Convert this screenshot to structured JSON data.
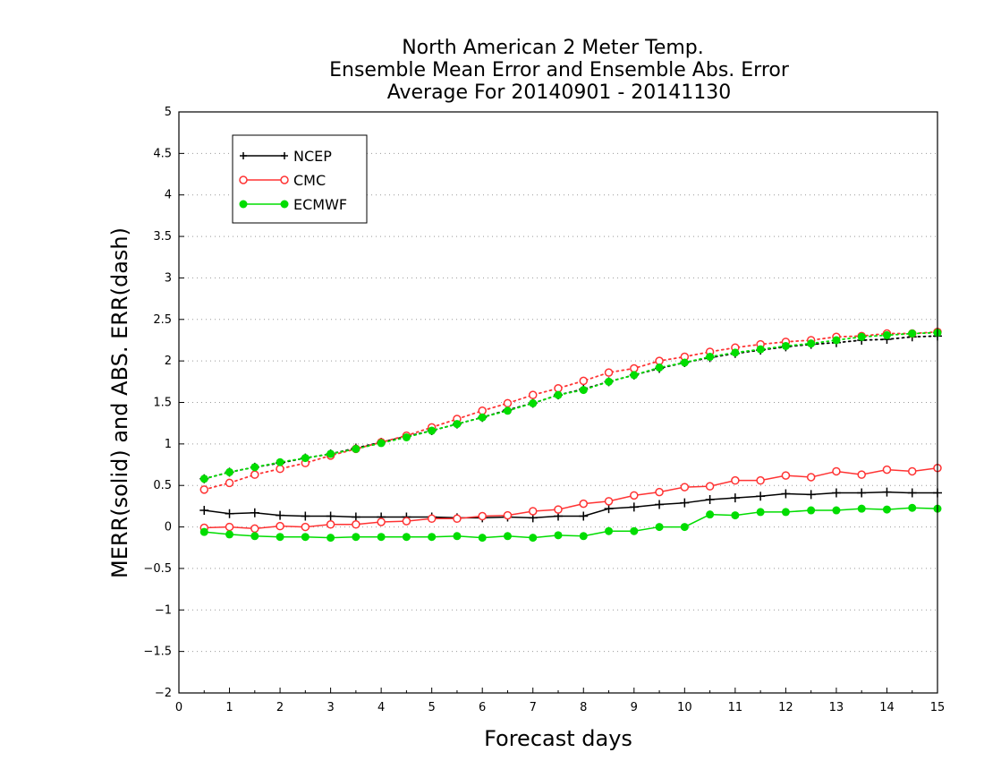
{
  "chart_data": {
    "type": "line",
    "title_lines": [
      "North American 2 Meter Temp.",
      "Ensemble Mean Error and Ensemble Abs. Error",
      "Average For 20140901 - 20141130"
    ],
    "xlabel": "Forecast days",
    "ylabel": "MERR(solid) and ABS. ERR(dash)",
    "xlim": [
      0,
      15
    ],
    "ylim": [
      -2,
      5
    ],
    "x_ticks": [
      "0",
      "1",
      "2",
      "3",
      "4",
      "5",
      "6",
      "7",
      "8",
      "9",
      "10",
      "11",
      "12",
      "13",
      "14",
      "15"
    ],
    "y_ticks": [
      "−2",
      "−1.5",
      "−1",
      "−0.5",
      "0",
      "0.5",
      "1",
      "1.5",
      "2",
      "2.5",
      "3",
      "3.5",
      "4",
      "4.5",
      "5"
    ],
    "y_tick_values": [
      -2,
      -1.5,
      -1,
      -0.5,
      0,
      0.5,
      1,
      1.5,
      2,
      2.5,
      3,
      3.5,
      4,
      4.5,
      5
    ],
    "grid": "horizontal-dotted",
    "legend_position": "top-left",
    "x": [
      0.5,
      1,
      1.5,
      2,
      2.5,
      3,
      3.5,
      4,
      4.5,
      5,
      5.5,
      6,
      6.5,
      7,
      7.5,
      8,
      8.5,
      9,
      9.5,
      10,
      10.5,
      11,
      11.5,
      12,
      12.5,
      13,
      13.5,
      14,
      14.5,
      15
    ],
    "series": [
      {
        "name": "NCEP",
        "color": "#000000",
        "marker": "plus",
        "merr": [
          0.2,
          0.16,
          0.17,
          0.14,
          0.13,
          0.13,
          0.12,
          0.12,
          0.12,
          0.12,
          0.11,
          0.11,
          0.12,
          0.11,
          0.13,
          0.13,
          0.22,
          0.24,
          0.27,
          0.29,
          0.33,
          0.35,
          0.37,
          0.4,
          0.39,
          0.41,
          0.41,
          0.42,
          0.41,
          0.41
        ],
        "abs_err": [
          0.58,
          0.66,
          0.72,
          0.77,
          0.83,
          0.88,
          0.95,
          1.02,
          1.09,
          1.16,
          1.24,
          1.32,
          1.41,
          1.49,
          1.59,
          1.66,
          1.75,
          1.83,
          1.91,
          1.98,
          2.04,
          2.09,
          2.13,
          2.17,
          2.2,
          2.22,
          2.25,
          2.26,
          2.29,
          2.3
        ]
      },
      {
        "name": "CMC",
        "color": "#ff3333",
        "marker": "open-circle",
        "merr": [
          -0.01,
          0.0,
          -0.02,
          0.01,
          0.0,
          0.03,
          0.03,
          0.06,
          0.07,
          0.1,
          0.1,
          0.13,
          0.14,
          0.19,
          0.21,
          0.28,
          0.31,
          0.38,
          0.42,
          0.48,
          0.49,
          0.56,
          0.56,
          0.62,
          0.6,
          0.67,
          0.63,
          0.69,
          0.67,
          0.71
        ],
        "abs_err": [
          0.45,
          0.53,
          0.63,
          0.7,
          0.77,
          0.86,
          0.94,
          1.02,
          1.1,
          1.2,
          1.3,
          1.4,
          1.49,
          1.59,
          1.67,
          1.76,
          1.86,
          1.91,
          2.0,
          2.05,
          2.11,
          2.16,
          2.2,
          2.23,
          2.25,
          2.29,
          2.3,
          2.33,
          2.33,
          2.35
        ]
      },
      {
        "name": "ECMWF",
        "color": "#00dd00",
        "marker": "filled-circle",
        "merr": [
          -0.06,
          -0.09,
          -0.11,
          -0.12,
          -0.12,
          -0.13,
          -0.12,
          -0.12,
          -0.12,
          -0.12,
          -0.11,
          -0.13,
          -0.11,
          -0.13,
          -0.1,
          -0.11,
          -0.05,
          -0.05,
          0.0,
          0.0,
          0.15,
          0.14,
          0.18,
          0.18,
          0.2,
          0.2,
          0.22,
          0.21,
          0.23,
          0.22
        ],
        "abs_err": [
          0.58,
          0.66,
          0.72,
          0.78,
          0.83,
          0.88,
          0.94,
          1.01,
          1.08,
          1.16,
          1.24,
          1.32,
          1.4,
          1.49,
          1.59,
          1.65,
          1.75,
          1.83,
          1.92,
          1.98,
          2.05,
          2.1,
          2.14,
          2.18,
          2.21,
          2.25,
          2.29,
          2.31,
          2.33,
          2.34
        ]
      }
    ]
  }
}
